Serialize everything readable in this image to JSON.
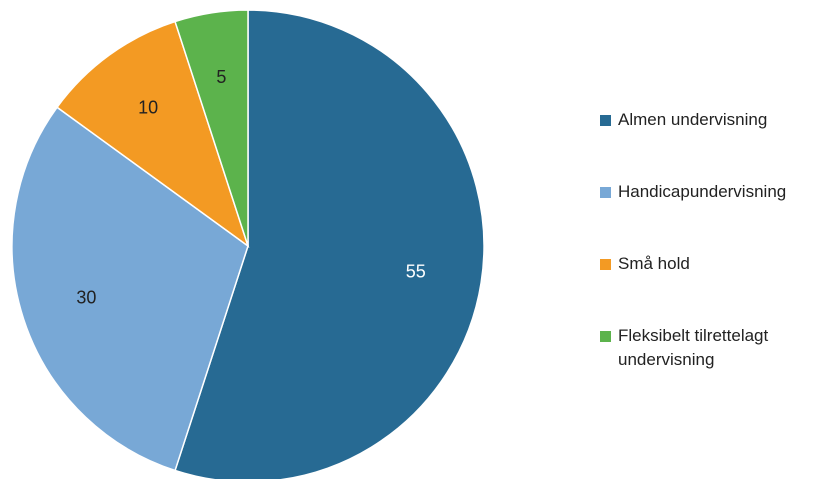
{
  "chart_data": {
    "type": "pie",
    "categories": [
      "Almen undervisning",
      "Handicapundervisning",
      "Små hold",
      "Fleksibelt tilrettelagt undervisning"
    ],
    "values": [
      55,
      30,
      10,
      5
    ],
    "colors": [
      "#276a93",
      "#78a8d6",
      "#f39a23",
      "#5cb34c"
    ],
    "label_colors": [
      "#ffffff",
      "#222222",
      "#222222",
      "#222222"
    ],
    "data_labels": [
      "55",
      "30",
      "10",
      "5"
    ],
    "start_angle": "12 o'clock",
    "direction": "clockwise",
    "legend": {
      "position": "right",
      "items": [
        "Almen undervisning",
        "Handicapundervisning",
        "Små hold",
        "Fleksibelt tilrettelagt undervisning"
      ]
    }
  }
}
